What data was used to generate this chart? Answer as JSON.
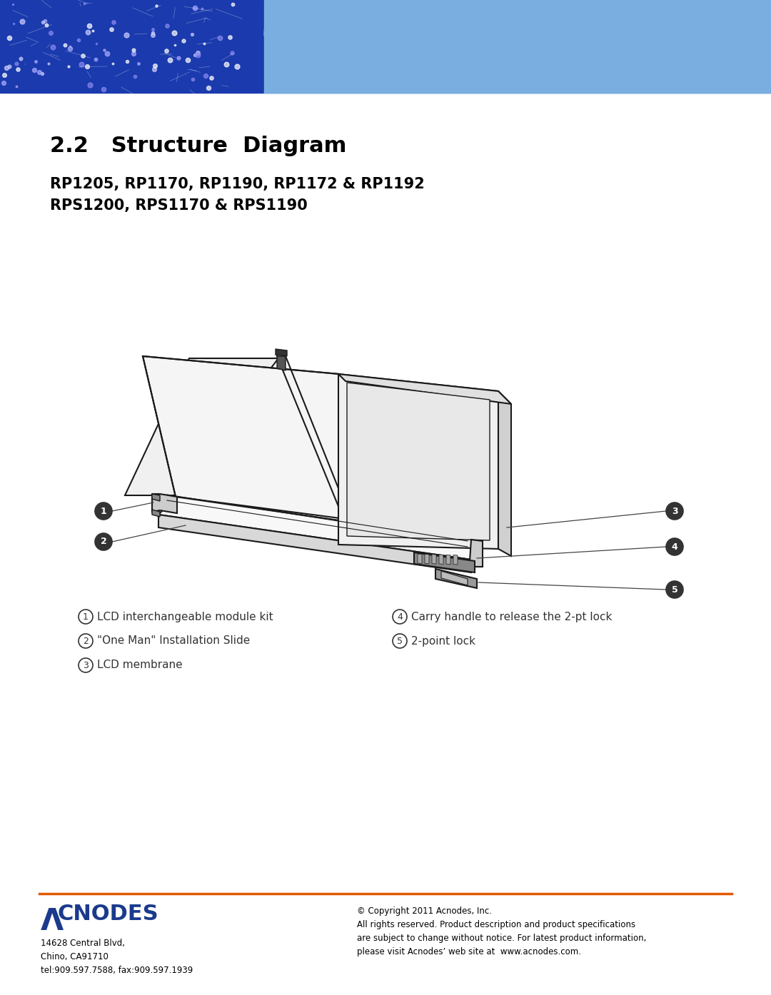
{
  "title": "2.2   Structure  Diagram",
  "subtitle_line1": "RP1205, RP1170, RP1190, RP1172 & RP1192",
  "subtitle_line2": "RPS1200, RPS1170 & RPS1190",
  "header_bg_dark": "#1a3aad",
  "header_bg_light": "#7aaee0",
  "footer_line_color": "#e05a00",
  "acnodes_blue": "#1a3a8c",
  "acnodes_address": "14628 Central Blvd,\nChino, CA91710\ntel:909.597.7588, fax:909.597.1939",
  "copyright_text": "© Copyright 2011 Acnodes, Inc.\nAll rights reserved. Product description and product specifications\nare subject to change without notice. For latest product information,\nplease visit Acnodes’ web site at  www.acnodes.com.",
  "items": [
    {
      "num": "1",
      "label": "LCD interchangeable module kit"
    },
    {
      "num": "2",
      "label": "\"One Man\" Installation Slide"
    },
    {
      "num": "3",
      "label": "LCD membrane"
    },
    {
      "num": "4",
      "label": "Carry handle to release the 2-pt lock"
    },
    {
      "num": "5",
      "label": "2-point lock"
    }
  ],
  "background": "#ffffff",
  "text_color": "#000000"
}
